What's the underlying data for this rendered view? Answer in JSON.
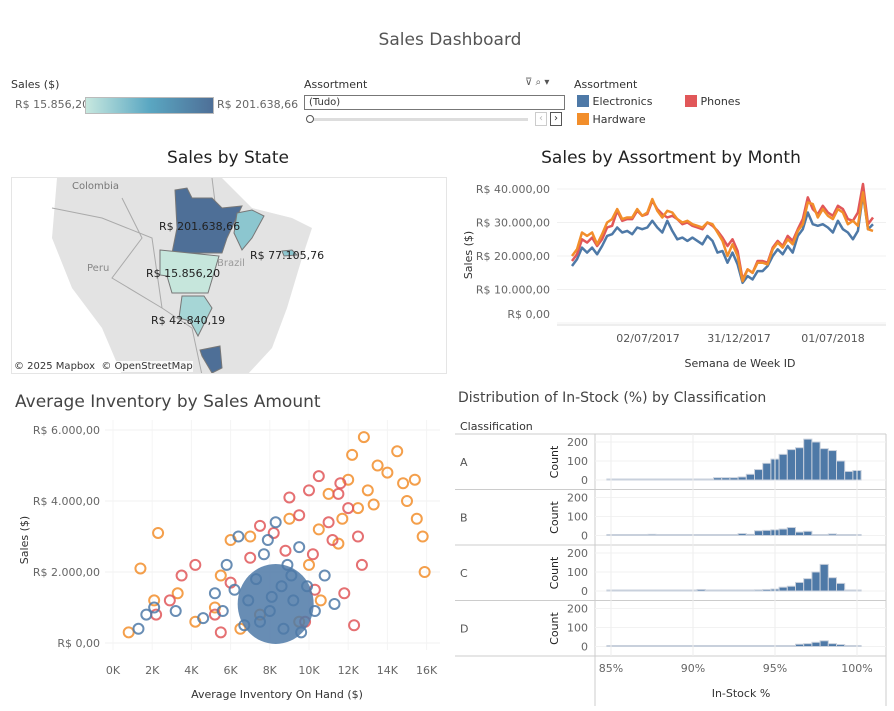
{
  "title": "Sales Dashboard",
  "color_legend": {
    "label": "Sales ($)",
    "min": "R$ 15.856,20",
    "max": "R$ 201.638,66"
  },
  "filter": {
    "label": "Assortment",
    "value": "(Tudo)"
  },
  "assortment_legend": {
    "label": "Assortment",
    "items": [
      {
        "name": "Electronics",
        "color": "#4e79a7"
      },
      {
        "name": "Phones",
        "color": "#e15759"
      },
      {
        "name": "Hardware",
        "color": "#f28e2b"
      }
    ]
  },
  "map": {
    "title": "Sales by State",
    "attribution": "© 2025 Mapbox  © OpenStreetMap",
    "place_labels": [
      "Colombia",
      "Peru",
      "Brazil"
    ],
    "labels": [
      "R$ 201.638,66",
      "R$ 77.105,76",
      "R$ 15.856,20",
      "R$ 42.840,19"
    ]
  },
  "line": {
    "title": "Sales by Assortment by Month",
    "ylabel": "Sales ($)",
    "xlabel": "Semana de Week ID"
  },
  "scatter": {
    "title": "Average Inventory by Sales Amount",
    "ylabel": "Sales ($)",
    "xlabel": "Average Inventory On Hand ($)"
  },
  "hist": {
    "title": "Distribution of In-Stock (%) by Classification",
    "header": "Classification",
    "ylabel": "Count",
    "xlabel": "In-Stock %"
  },
  "chart_data": [
    {
      "type": "line",
      "title": "Sales by Assortment by Month",
      "xlabel": "Semana de Week ID",
      "ylabel": "Sales ($)",
      "ylim": [
        0,
        40000
      ],
      "yticks": [
        "R$ 0,00",
        "R$ 10.000,00",
        "R$ 20.000,00",
        "R$ 30.000,00",
        "R$ 40.000,00"
      ],
      "xticks": [
        "02/07/2017",
        "31/12/2017",
        "01/07/2018"
      ],
      "x_range": [
        "29/01/2017",
        "16/09/2018"
      ],
      "series": [
        {
          "name": "Electronics",
          "color": "#4e79a7",
          "values": [
            17000,
            19000,
            22500,
            21000,
            22500,
            20500,
            23000,
            26000,
            26500,
            28500,
            27000,
            27500,
            26500,
            28500,
            28000,
            28500,
            30500,
            28500,
            27000,
            30500,
            27500,
            25000,
            25500,
            24500,
            25500,
            24500,
            23500,
            26000,
            24500,
            21000,
            21500,
            18000,
            21000,
            17500,
            12000,
            14000,
            13000,
            15500,
            15500,
            17000,
            20000,
            22000,
            20500,
            23000,
            21000,
            26000,
            28000,
            33000,
            29500,
            29000,
            29500,
            28500,
            27000,
            30500,
            28000,
            27000,
            25000,
            27500,
            38500,
            28000,
            29500
          ]
        },
        {
          "name": "Phones",
          "color": "#e15759",
          "values": [
            18500,
            20500,
            25000,
            24000,
            25500,
            23000,
            25000,
            28500,
            29000,
            33500,
            30500,
            31000,
            31000,
            33500,
            32000,
            32500,
            36500,
            34000,
            32500,
            31500,
            32000,
            31000,
            29500,
            30000,
            29000,
            28500,
            28000,
            30000,
            29000,
            27500,
            25500,
            23000,
            25000,
            21500,
            13000,
            16000,
            15000,
            18500,
            18500,
            18000,
            22500,
            24500,
            23000,
            26000,
            24500,
            28000,
            31000,
            37500,
            34000,
            32500,
            35000,
            33000,
            32000,
            35000,
            34000,
            31000,
            30500,
            33000,
            41500,
            29500,
            31500
          ]
        },
        {
          "name": "Hardware",
          "color": "#f28e2b",
          "values": [
            20000,
            22000,
            27000,
            26000,
            27000,
            23500,
            26500,
            30000,
            31000,
            34000,
            31000,
            31500,
            31500,
            34000,
            32000,
            33000,
            37000,
            33500,
            31500,
            33500,
            33000,
            31000,
            30000,
            30500,
            29500,
            29000,
            28500,
            30000,
            29500,
            27000,
            24500,
            20000,
            23500,
            20000,
            12500,
            16000,
            15000,
            18000,
            18000,
            17500,
            22000,
            24000,
            22500,
            25000,
            23500,
            27500,
            29500,
            36000,
            35500,
            31500,
            34000,
            32000,
            31000,
            34000,
            33000,
            29500,
            30500,
            29000,
            39000,
            28000,
            27500
          ]
        }
      ]
    },
    {
      "type": "scatter",
      "title": "Average Inventory by Sales Amount",
      "xlabel": "Average Inventory On Hand ($)",
      "ylabel": "Sales ($)",
      "xlim": [
        0,
        16500
      ],
      "ylim": [
        0,
        6000
      ],
      "xticks": [
        "0K",
        "2K",
        "4K",
        "6K",
        "8K",
        "10K",
        "12K",
        "14K",
        "16K"
      ],
      "yticks": [
        "R$ 0,00",
        "R$ 2.000,00",
        "R$ 4.000,00",
        "R$ 6.000,00"
      ],
      "series": [
        {
          "name": "Hardware",
          "color": "#f28e2b",
          "points": [
            [
              800,
              300
            ],
            [
              1400,
              2100
            ],
            [
              2100,
              1200
            ],
            [
              2300,
              3100
            ],
            [
              3300,
              1400
            ],
            [
              4200,
              600
            ],
            [
              5500,
              1900
            ],
            [
              6000,
              2900
            ],
            [
              7000,
              3000
            ],
            [
              7500,
              800
            ],
            [
              9000,
              3500
            ],
            [
              10000,
              2200
            ],
            [
              10500,
              3200
            ],
            [
              11000,
              4200
            ],
            [
              11500,
              2800
            ],
            [
              12000,
              4600
            ],
            [
              12500,
              3800
            ],
            [
              12800,
              5800
            ],
            [
              13000,
              4300
            ],
            [
              13500,
              5000
            ],
            [
              14000,
              4800
            ],
            [
              14500,
              5400
            ],
            [
              15000,
              4000
            ],
            [
              15400,
              4600
            ],
            [
              15800,
              3000
            ],
            [
              15900,
              2000
            ],
            [
              15500,
              3500
            ],
            [
              14800,
              4500
            ],
            [
              13300,
              3900
            ],
            [
              12200,
              5300
            ],
            [
              11700,
              3500
            ],
            [
              10600,
              1200
            ],
            [
              9500,
              600
            ],
            [
              6500,
              400
            ],
            [
              5200,
              1000
            ]
          ]
        },
        {
          "name": "Phones",
          "color": "#e15759",
          "points": [
            [
              2200,
              800
            ],
            [
              2900,
              1200
            ],
            [
              3500,
              1900
            ],
            [
              4200,
              2200
            ],
            [
              5200,
              800
            ],
            [
              6000,
              1700
            ],
            [
              7000,
              2400
            ],
            [
              8200,
              3100
            ],
            [
              9000,
              4100
            ],
            [
              9500,
              3600
            ],
            [
              10000,
              4300
            ],
            [
              10500,
              4700
            ],
            [
              11000,
              3400
            ],
            [
              11500,
              4200
            ],
            [
              12000,
              3800
            ],
            [
              12500,
              3000
            ],
            [
              12700,
              2200
            ],
            [
              11200,
              2900
            ],
            [
              10300,
              1500
            ],
            [
              9800,
              600
            ],
            [
              11800,
              1400
            ],
            [
              12300,
              500
            ],
            [
              5500,
              300
            ],
            [
              7500,
              3300
            ],
            [
              8800,
              2600
            ],
            [
              10200,
              2500
            ],
            [
              11600,
              4500
            ]
          ]
        },
        {
          "name": "Electronics",
          "color": "#4e79a7",
          "points": [
            [
              1300,
              400
            ],
            [
              1700,
              800
            ],
            [
              2100,
              1000
            ],
            [
              3200,
              900
            ],
            [
              4600,
              700
            ],
            [
              5200,
              1400
            ],
            [
              5800,
              2200
            ],
            [
              6400,
              3000
            ],
            [
              6900,
              1200
            ],
            [
              7300,
              1800
            ],
            [
              7700,
              2500
            ],
            [
              8000,
              900
            ],
            [
              8300,
              3400
            ],
            [
              8600,
              1600
            ],
            [
              8900,
              2200
            ],
            [
              9200,
              1200
            ],
            [
              9500,
              2700
            ],
            [
              9900,
              1600
            ],
            [
              10300,
              900
            ],
            [
              10800,
              1900
            ],
            [
              11300,
              1100
            ],
            [
              7500,
              600
            ],
            [
              6700,
              500
            ],
            [
              8700,
              400
            ],
            [
              9600,
              300
            ],
            [
              7900,
              2900
            ],
            [
              6200,
              1500
            ],
            [
              8100,
              1300
            ],
            [
              9100,
              1900
            ],
            [
              5600,
              900
            ]
          ]
        }
      ]
    },
    {
      "type": "bar",
      "title": "Distribution of In-Stock (%) by Classification",
      "xlabel": "In-Stock %",
      "ylabel": "Count",
      "bin_start": 85,
      "bin_width": 0.5,
      "ylim": [
        0,
        220
      ],
      "xticks": [
        "85%",
        "90%",
        "95%",
        "100%"
      ],
      "yticks": [
        "0",
        "100",
        "200"
      ],
      "facets": [
        "A",
        "B",
        "C",
        "D"
      ],
      "series": [
        {
          "name": "A",
          "values": [
            1,
            0,
            1,
            1,
            0,
            2,
            2,
            2,
            2,
            1,
            4,
            4,
            4,
            12,
            12,
            12,
            16,
            30,
            55,
            88,
            110,
            135,
            160,
            170,
            215,
            200,
            165,
            155,
            100,
            45,
            50
          ]
        },
        {
          "name": "B",
          "values": [
            1,
            1,
            0,
            0,
            0,
            6,
            1,
            2,
            3,
            3,
            3,
            3,
            4,
            4,
            5,
            5,
            10,
            6,
            25,
            27,
            30,
            34,
            42,
            18,
            22,
            1,
            0,
            8,
            0,
            0,
            0
          ]
        },
        {
          "name": "C",
          "values": [
            2,
            2,
            2,
            0,
            2,
            2,
            3,
            4,
            2,
            2,
            0,
            8,
            2,
            2,
            3,
            3,
            3,
            4,
            6,
            8,
            10,
            20,
            25,
            45,
            65,
            100,
            140,
            70,
            40,
            0,
            0
          ]
        },
        {
          "name": "D",
          "values": [
            0,
            0,
            0,
            0,
            0,
            0,
            0,
            1,
            0,
            0,
            0,
            0,
            2,
            0,
            0,
            0,
            2,
            0,
            0,
            2,
            4,
            2,
            4,
            12,
            15,
            22,
            30,
            15,
            10,
            0,
            0
          ]
        }
      ]
    }
  ]
}
